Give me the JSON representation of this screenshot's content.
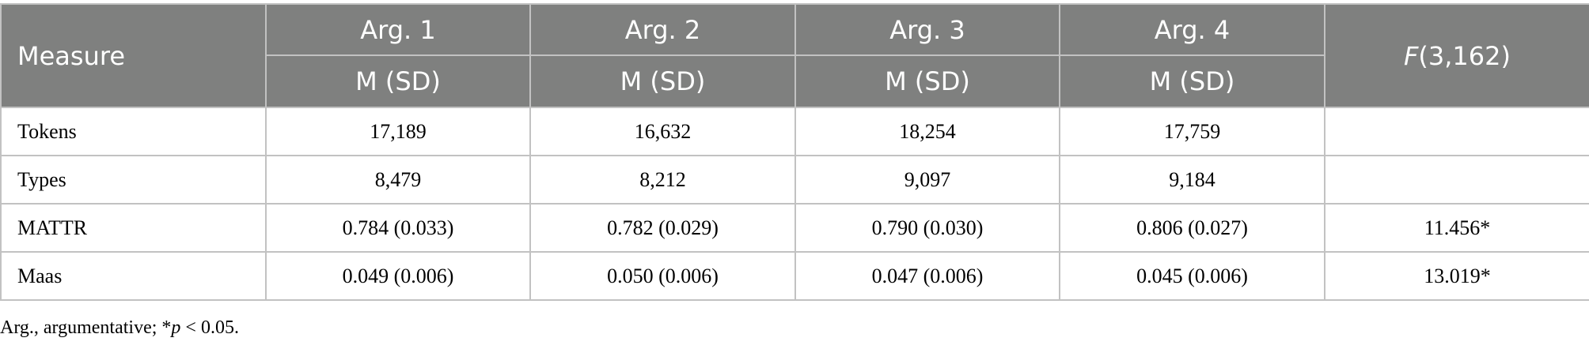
{
  "table": {
    "header": {
      "measure": "Measure",
      "groups": [
        "Arg. 1",
        "Arg. 2",
        "Arg. 3",
        "Arg. 4"
      ],
      "subheader": "M (SD)",
      "f_italic": "F",
      "f_rest": "(3,162)"
    },
    "rows": [
      {
        "label": "Tokens",
        "values": [
          "17,189",
          "16,632",
          "18,254",
          "17,759"
        ],
        "f": ""
      },
      {
        "label": "Types",
        "values": [
          "8,479",
          "8,212",
          "9,097",
          "9,184"
        ],
        "f": ""
      },
      {
        "label": "MATTR",
        "values": [
          "0.784 (0.033)",
          "0.782 (0.029)",
          "0.790 (0.030)",
          "0.806 (0.027)"
        ],
        "f": "11.456*"
      },
      {
        "label": "Maas",
        "values": [
          "0.049 (0.006)",
          "0.050 (0.006)",
          "0.047 (0.006)",
          "0.045 (0.006)"
        ],
        "f": "13.019*"
      }
    ]
  },
  "footnote": {
    "prefix": "Arg., argumentative; *",
    "p": "p",
    "suffix": " < 0.05."
  }
}
